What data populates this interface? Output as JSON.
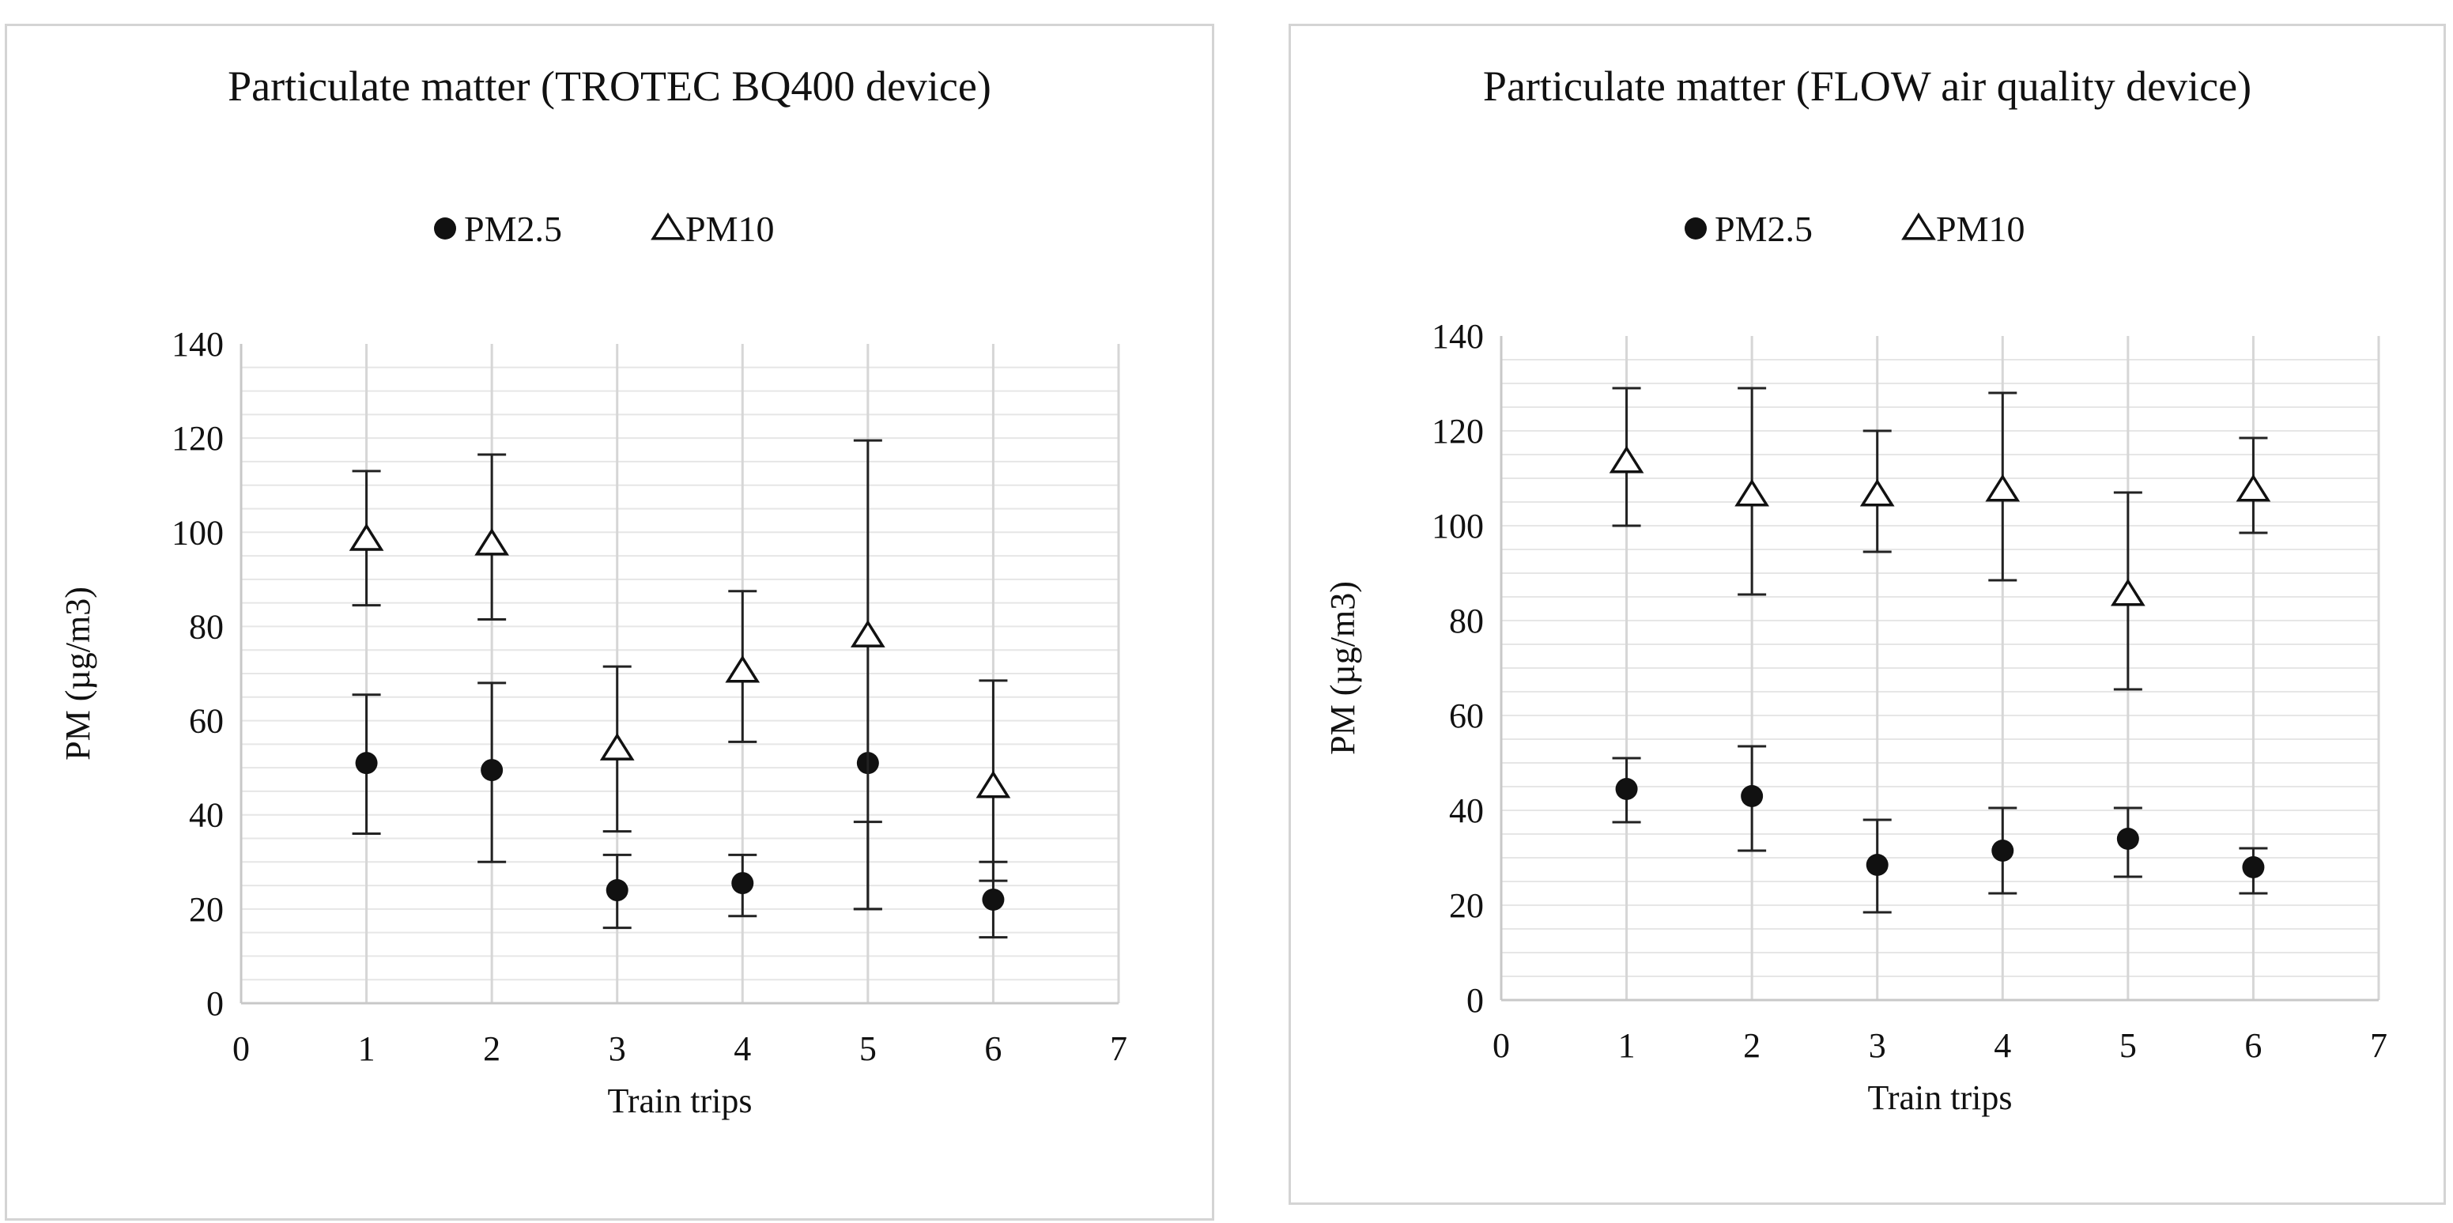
{
  "chart_data": [
    {
      "type": "scatter",
      "title": "Particulate matter  (TROTEC BQ400 device)",
      "xlabel": "Train trips",
      "ylabel": "PM (µg/m3)",
      "xlim": [
        0,
        7
      ],
      "ylim": [
        0,
        140
      ],
      "xticks": [
        "0",
        "1",
        "2",
        "3",
        "4",
        "5",
        "6",
        "7"
      ],
      "yticks": [
        "0",
        "20",
        "40",
        "60",
        "80",
        "100",
        "120",
        "140"
      ],
      "grid": true,
      "legend": "top",
      "series": [
        {
          "name": "PM2.5",
          "marker": "circle",
          "x": [
            1,
            2,
            3,
            4,
            5,
            6
          ],
          "values": [
            51,
            49.5,
            24,
            25.5,
            51,
            22
          ],
          "error_low": [
            36,
            30,
            16,
            18.5,
            20,
            14
          ],
          "error_high": [
            65.5,
            68,
            31.5,
            31.5,
            38.5,
            30
          ]
        },
        {
          "name": "PM10",
          "marker": "triangle-open",
          "x": [
            1,
            2,
            3,
            4,
            5,
            6
          ],
          "values": [
            98.5,
            97.5,
            54,
            70.5,
            78,
            46
          ],
          "error_low": [
            84.5,
            81.5,
            36.5,
            55.5,
            20,
            26
          ],
          "error_high": [
            113,
            116.5,
            71.5,
            87.5,
            119.5,
            68.5
          ]
        }
      ]
    },
    {
      "type": "scatter",
      "title": "Particulate matter (FLOW air quality device)",
      "xlabel": "Train trips",
      "ylabel": "PM (µg/m3)",
      "xlim": [
        0,
        7
      ],
      "ylim": [
        0,
        140
      ],
      "xticks": [
        "0",
        "1",
        "2",
        "3",
        "4",
        "5",
        "6",
        "7"
      ],
      "yticks": [
        "0",
        "20",
        "40",
        "60",
        "80",
        "100",
        "120",
        "140"
      ],
      "grid": true,
      "legend": "top",
      "series": [
        {
          "name": "PM2.5",
          "marker": "circle",
          "x": [
            1,
            2,
            3,
            4,
            5,
            6
          ],
          "values": [
            44.5,
            43,
            28.5,
            31.5,
            34,
            28
          ],
          "error_low": [
            37.5,
            31.5,
            18.5,
            22.5,
            26,
            22.5
          ],
          "error_high": [
            51,
            53.5,
            38,
            40.5,
            40.5,
            32
          ]
        },
        {
          "name": "PM10",
          "marker": "triangle-open",
          "x": [
            1,
            2,
            3,
            4,
            5,
            6
          ],
          "values": [
            113.5,
            106.5,
            106.5,
            107.5,
            85.5,
            107.5
          ],
          "error_low": [
            100,
            85.5,
            94.5,
            88.5,
            65.5,
            98.5
          ],
          "error_high": [
            129,
            129,
            120,
            128,
            107,
            118.5
          ]
        }
      ]
    }
  ]
}
